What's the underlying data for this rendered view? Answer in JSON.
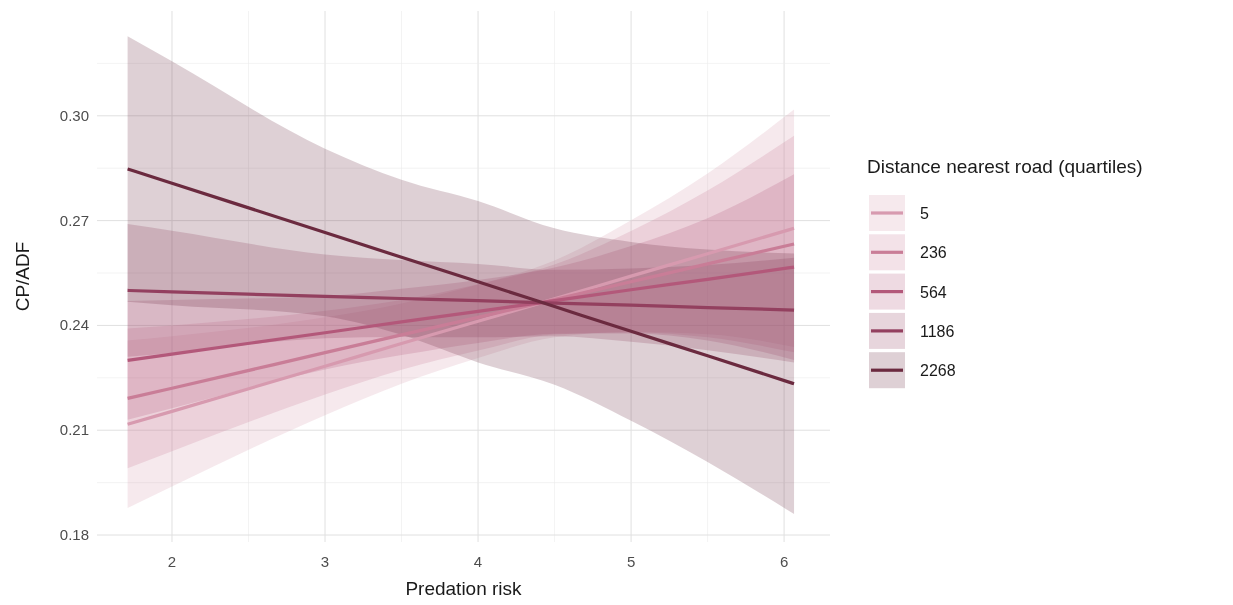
{
  "chart_data": {
    "type": "line",
    "xlabel": "Predation risk",
    "ylabel": "CP/ADF",
    "legend_title": "Distance nearest road (quartiles)",
    "legend": "right",
    "grid": true,
    "x": [
      1.71,
      2,
      3,
      3.5,
      4,
      4.5,
      5,
      5.5,
      6.065
    ],
    "xlim": [
      1.51,
      6.3
    ],
    "xticks": [
      2,
      3,
      4,
      5,
      6
    ],
    "ylim": [
      0.178,
      0.33
    ],
    "yticks": [
      {
        "value": 0.18,
        "label": "0.18"
      },
      {
        "value": 0.21,
        "label": "0.21"
      },
      {
        "value": 0.24,
        "label": "0.24"
      },
      {
        "value": 0.27,
        "label": "0.27"
      },
      {
        "value": 0.3,
        "label": "0.30"
      }
    ],
    "series": [
      {
        "name": "5",
        "color": "#d79aaf",
        "values": [
          0.2117,
          0.2154,
          0.2283,
          0.2348,
          0.2412,
          0.2476,
          0.2541,
          0.2605,
          0.2678
        ],
        "lower": [
          0.1877,
          0.1939,
          0.2143,
          0.2233,
          0.2307,
          0.2366,
          0.2381,
          0.2375,
          0.2338
        ],
        "upper": [
          0.2357,
          0.2369,
          0.2423,
          0.2463,
          0.2517,
          0.2586,
          0.2701,
          0.2835,
          0.3018
        ]
      },
      {
        "name": "236",
        "color": "#c97d97",
        "values": [
          0.2191,
          0.222,
          0.2322,
          0.2373,
          0.2423,
          0.2474,
          0.2525,
          0.2576,
          0.2633
        ],
        "lower": [
          0.1991,
          0.204,
          0.2202,
          0.2273,
          0.2328,
          0.2374,
          0.238,
          0.2366,
          0.2323
        ],
        "upper": [
          0.2391,
          0.24,
          0.2442,
          0.2473,
          0.2518,
          0.2574,
          0.267,
          0.2786,
          0.2943
        ]
      },
      {
        "name": "564",
        "color": "#b3587a",
        "values": [
          0.23,
          0.2318,
          0.2379,
          0.241,
          0.244,
          0.2471,
          0.2502,
          0.2532,
          0.2567
        ],
        "lower": [
          0.213,
          0.2163,
          0.2274,
          0.2315,
          0.235,
          0.2376,
          0.2377,
          0.2357,
          0.2301
        ],
        "upper": [
          0.247,
          0.2473,
          0.2484,
          0.2505,
          0.253,
          0.2566,
          0.2627,
          0.2707,
          0.2833
        ]
      },
      {
        "name": "1186",
        "color": "#93405f",
        "values": [
          0.25,
          0.2496,
          0.2483,
          0.2477,
          0.2471,
          0.2464,
          0.2458,
          0.2451,
          0.2444
        ],
        "lower": [
          0.231,
          0.2321,
          0.2363,
          0.2367,
          0.2366,
          0.2369,
          0.2353,
          0.2329,
          0.2294
        ],
        "upper": [
          0.269,
          0.2671,
          0.2603,
          0.2587,
          0.2576,
          0.2559,
          0.2563,
          0.2573,
          0.2594
        ]
      },
      {
        "name": "2268",
        "color": "#6b2a3f",
        "values": [
          0.2848,
          0.2807,
          0.2666,
          0.2595,
          0.2525,
          0.2454,
          0.2383,
          0.2313,
          0.2233
        ],
        "lower": [
          0.2468,
          0.2458,
          0.2426,
          0.2373,
          0.2294,
          0.223,
          0.2127,
          0.2009,
          0.186
        ],
        "upper": [
          0.3228,
          0.3156,
          0.2906,
          0.2817,
          0.2756,
          0.2678,
          0.2639,
          0.2617,
          0.2606
        ]
      }
    ]
  }
}
